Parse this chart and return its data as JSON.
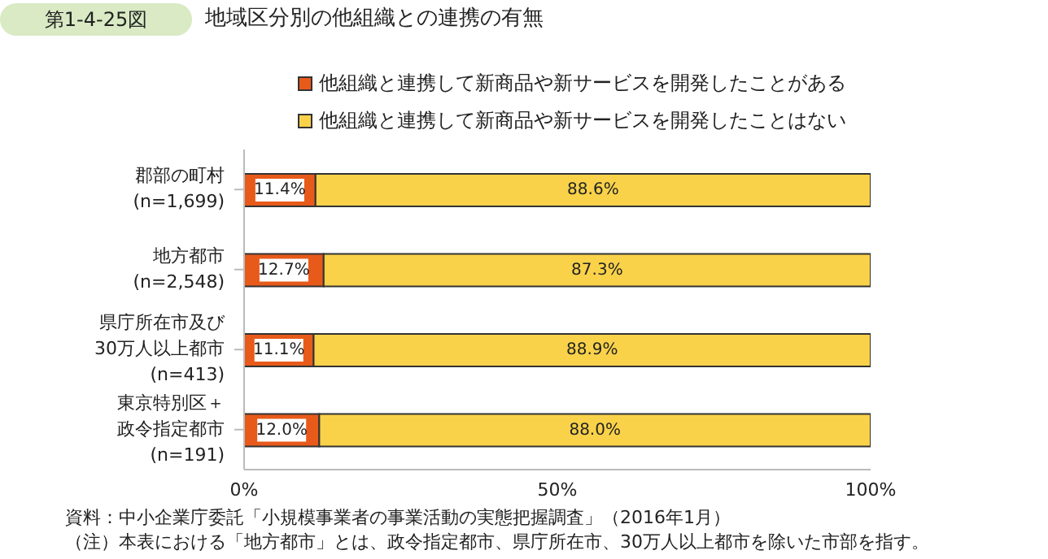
{
  "chart_data": {
    "type": "bar",
    "orientation": "horizontal",
    "stacked": true,
    "title": "地域区分別の他組織との連携の有無",
    "categories": [
      "郡部の町村\n(n=1,699)",
      "地方都市\n(n=2,548)",
      "県庁所在市及び30万人以上都市\n(n=413)",
      "東京特別区＋政令指定都市\n(n=191)"
    ],
    "series": [
      {
        "name": "他組織と連携して新商品や新サービスを開発したことがある",
        "color": "#e85a1a",
        "values": [
          11.4,
          12.7,
          11.1,
          12.0
        ],
        "value_labels": [
          "11.4%",
          "12.7%",
          "11.1%",
          "12.0%"
        ]
      },
      {
        "name": "他組織と連携して新商品や新サービスを開発したことはない",
        "color": "#f9d24a",
        "values": [
          88.6,
          87.3,
          88.9,
          88.0
        ],
        "value_labels": [
          "88.6%",
          "87.3%",
          "88.9%",
          "88.0%"
        ]
      }
    ],
    "xlim": [
      0,
      100
    ],
    "xticks": [
      {
        "value": 0,
        "label": "0%"
      },
      {
        "value": 50,
        "label": "50%"
      },
      {
        "value": 100,
        "label": "100%"
      }
    ],
    "grid": false,
    "legend": "top",
    "annotations": [
      "第1-4-25図",
      "資料：中小企業庁委託「小規模事業者の事業活動の実態把握調査」（2016年1月）",
      "（注）本表における「地方都市」とは、政令指定都市、県庁所在市、30万人以上都市を除いた市部を指す。"
    ]
  }
}
